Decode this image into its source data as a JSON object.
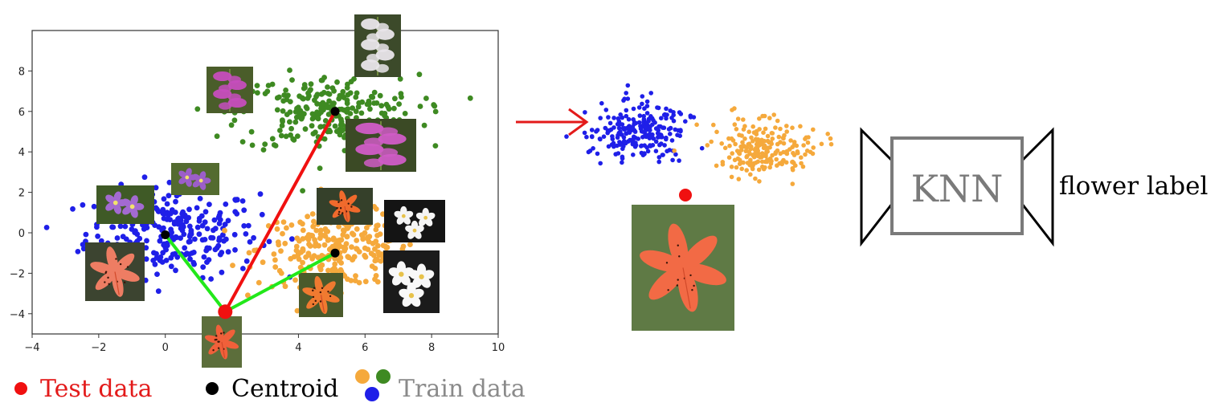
{
  "chart_data": {
    "type": "scatter",
    "title": "",
    "xlabel": "",
    "ylabel": "",
    "xlim": [
      -4,
      10
    ],
    "ylim": [
      -5,
      10
    ],
    "x_ticks": [
      -4,
      -2,
      0,
      2,
      4,
      6,
      8,
      10
    ],
    "y_ticks": [
      -4,
      -2,
      0,
      2,
      4,
      6,
      8
    ],
    "grid": false,
    "series": [
      {
        "role": "train-cluster-blue",
        "color": "#1f1fe8",
        "center": [
          0.2,
          0.0
        ],
        "spread": [
          1.3,
          1.1
        ],
        "count": 260
      },
      {
        "role": "train-cluster-orange",
        "color": "#f5a93c",
        "center": [
          5.2,
          -0.8
        ],
        "spread": [
          1.2,
          0.9
        ],
        "count": 260
      },
      {
        "role": "train-cluster-green",
        "color": "#3e8a22",
        "center": [
          4.9,
          5.9
        ],
        "spread": [
          1.35,
          0.95
        ],
        "count": 260
      }
    ],
    "centroids": [
      {
        "cluster": "blue",
        "x": 0.0,
        "y": -0.1
      },
      {
        "cluster": "green",
        "x": 5.1,
        "y": 6.0
      },
      {
        "cluster": "orange",
        "x": 5.1,
        "y": -1.0
      }
    ],
    "test_point": {
      "x": 1.8,
      "y": -3.9
    },
    "nearest_lines": [
      "blue",
      "orange"
    ],
    "far_lines": [
      "green"
    ]
  },
  "knn": {
    "box_label": "KNN",
    "output_label": "flower label"
  },
  "legend": {
    "test": "Test data",
    "centroid": "Centroid",
    "train": "Train data"
  },
  "colors": {
    "blue": "#1f1fe8",
    "orange": "#f5a93c",
    "green": "#3e8a22",
    "test": "#f01010",
    "centroid": "#000000",
    "arrow": "#e31a1a",
    "near_line": "#22e81a",
    "far_line": "#f01010",
    "knn_box": "#7a7a7a"
  },
  "thumbnails": [
    {
      "name": "foxglove-pink-thumb",
      "kind": "foxglove",
      "base": "#4a5d2a",
      "petal": "#c64dbd"
    },
    {
      "name": "foxglove-white-thumb",
      "kind": "foxglove",
      "base": "#3c4a2a",
      "petal": "#e9e5ea"
    },
    {
      "name": "foxglove-magenta-thumb",
      "kind": "foxglove",
      "base": "#3b4a25",
      "petal": "#d05cc6"
    },
    {
      "name": "violet-flower-thumb-1",
      "kind": "violet",
      "base": "#3f5a26",
      "petal": "#a36ad1"
    },
    {
      "name": "violet-flower-thumb-2",
      "kind": "violet",
      "base": "#536b2f",
      "petal": "#9c5ec9"
    },
    {
      "name": "tiger-lily-thumb-left",
      "kind": "lily",
      "base": "#3c4430",
      "petal": "#ee7d63"
    },
    {
      "name": "tiger-lily-thumb-orange",
      "kind": "lily",
      "base": "#35402a",
      "petal": "#f06a2c"
    },
    {
      "name": "tiger-lily-thumb-small",
      "kind": "lily",
      "base": "#4a5a2b",
      "petal": "#f07a30"
    },
    {
      "name": "tiger-lily-thumb-test",
      "kind": "lily",
      "base": "#5c6e3b",
      "petal": "#f0603a"
    },
    {
      "name": "orchid-white-thumb-1",
      "kind": "orchid",
      "base": "#141414",
      "petal": "#f4f4f4"
    },
    {
      "name": "orchid-white-thumb-2",
      "kind": "orchid",
      "base": "#1b1b1b",
      "petal": "#f8f8f8"
    },
    {
      "name": "tiger-lily-large-photo",
      "kind": "lily",
      "base": "#5f7a45",
      "petal": "#f26a45"
    }
  ]
}
